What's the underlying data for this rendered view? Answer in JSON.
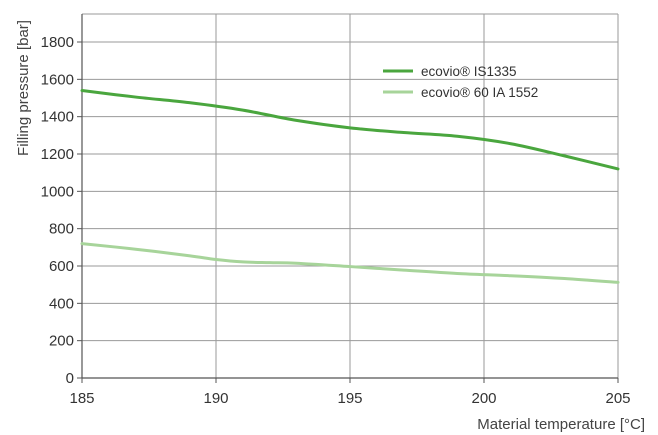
{
  "chart_data": {
    "type": "line",
    "title": "",
    "xlabel": "Material temperature [°C]",
    "ylabel": "Filling pressure [bar]",
    "xlim": [
      185,
      205
    ],
    "ylim": [
      0,
      1950
    ],
    "xticks": [
      185,
      190,
      195,
      200,
      205
    ],
    "yticks": [
      0,
      200,
      400,
      600,
      800,
      1000,
      1200,
      1400,
      1600,
      1800
    ],
    "grid": true,
    "legend_position": "top-right",
    "series": [
      {
        "name": "ecovio® IS1335",
        "color": "#4aa63e",
        "x": [
          185,
          187,
          189,
          191,
          193,
          195,
          197,
          199,
          201,
          203,
          205
        ],
        "y": [
          1540,
          1505,
          1475,
          1435,
          1380,
          1340,
          1315,
          1295,
          1255,
          1190,
          1120
        ]
      },
      {
        "name": "ecovio® 60 IA 1552",
        "color": "#a7d49a",
        "x": [
          185,
          187,
          189,
          190,
          191,
          192,
          193,
          195,
          197,
          199,
          201,
          203,
          205
        ],
        "y": [
          720,
          690,
          655,
          635,
          622,
          618,
          615,
          597,
          578,
          560,
          548,
          533,
          512
        ]
      }
    ]
  }
}
